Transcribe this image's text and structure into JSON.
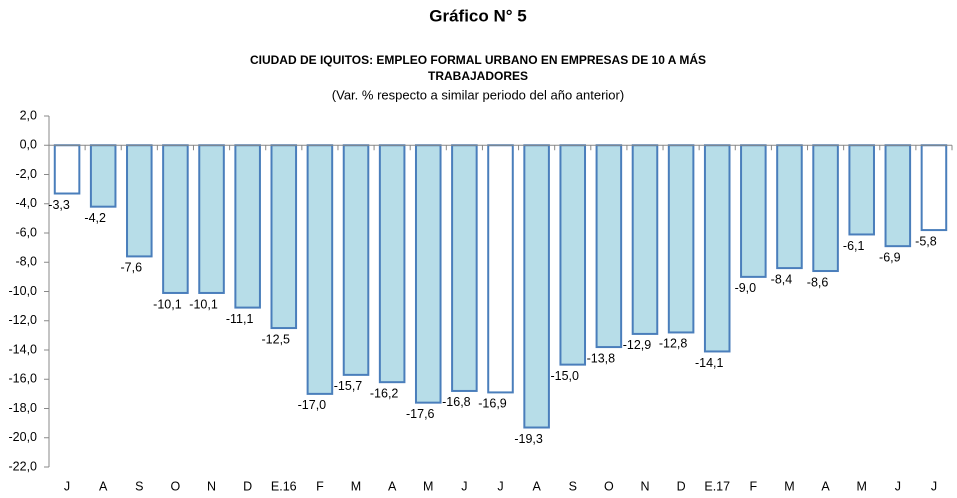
{
  "chart_data": {
    "type": "bar",
    "title": "Gráfico N° 5",
    "subtitle_lines": [
      "CIUDAD DE IQUITOS: EMPLEO FORMAL URBANO EN EMPRESAS DE 10 A MÁS",
      "TRABAJADORES"
    ],
    "note": "(Var. % respecto a similar periodo del año anterior)",
    "categories": [
      "J",
      "A",
      "S",
      "O",
      "N",
      "D",
      "E.16",
      "F",
      "M",
      "A",
      "M",
      "J",
      "J",
      "A",
      "S",
      "O",
      "N",
      "D",
      "E.17",
      "F",
      "M",
      "A",
      "M",
      "J",
      "J"
    ],
    "values": [
      -3.3,
      -4.2,
      -7.6,
      -10.1,
      -10.1,
      -11.1,
      -12.5,
      -17.0,
      -15.7,
      -16.2,
      -17.6,
      -16.8,
      -16.9,
      -19.3,
      -15.0,
      -13.8,
      -12.9,
      -12.8,
      -14.1,
      -9.0,
      -8.4,
      -8.6,
      -6.1,
      -6.9,
      -5.8
    ],
    "value_labels": [
      "-3,3",
      "-4,2",
      "-7,6",
      "-10,1",
      "-10,1",
      "-11,1",
      "-12,5",
      "-17,0",
      "-15,7",
      "-16,2",
      "-17,6",
      "-16,8",
      "-16,9",
      "-19,3",
      "-15,0",
      "-13,8",
      "-12,9",
      "-12,8",
      "-14,1",
      "-9,0",
      "-8,4",
      "-8,6",
      "-6,1",
      "-6,9",
      "-5,8"
    ],
    "colors": [
      "#ffffff",
      "#b7dde8",
      "#b7dde8",
      "#b7dde8",
      "#b7dde8",
      "#b7dde8",
      "#b7dde8",
      "#b7dde8",
      "#b7dde8",
      "#b7dde8",
      "#b7dde8",
      "#b7dde8",
      "#ffffff",
      "#b7dde8",
      "#b7dde8",
      "#b7dde8",
      "#b7dde8",
      "#b7dde8",
      "#b7dde8",
      "#b7dde8",
      "#b7dde8",
      "#b7dde8",
      "#b7dde8",
      "#b7dde8",
      "#ffffff"
    ],
    "edge_color": "#4a7ebb",
    "ylim": [
      -22,
      2
    ],
    "yticks": [
      {
        "value": 2,
        "label": "2,0"
      },
      {
        "value": 0,
        "label": "0,0"
      },
      {
        "value": -2,
        "label": "-2,0"
      },
      {
        "value": -4,
        "label": "-4,0"
      },
      {
        "value": -6,
        "label": "-6,0"
      },
      {
        "value": -8,
        "label": "-8,0"
      },
      {
        "value": -10,
        "label": "-10,0"
      },
      {
        "value": -12,
        "label": "-12,0"
      },
      {
        "value": -14,
        "label": "-14,0"
      },
      {
        "value": -16,
        "label": "-16,0"
      },
      {
        "value": -18,
        "label": "-18,0"
      },
      {
        "value": -20,
        "label": "-20,0"
      },
      {
        "value": -22,
        "label": "-22,0"
      }
    ],
    "grid": false
  }
}
